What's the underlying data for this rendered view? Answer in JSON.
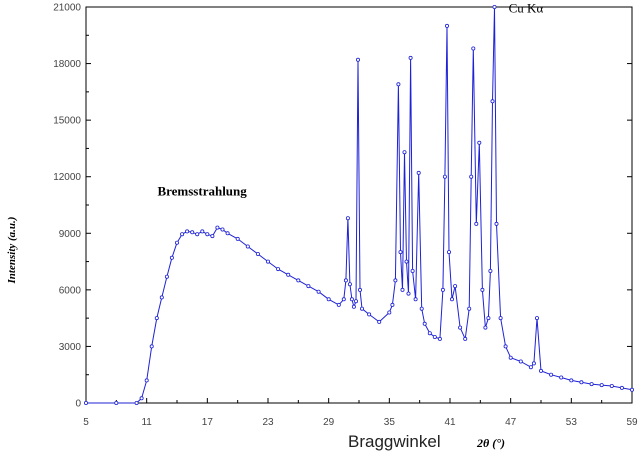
{
  "chart_data": {
    "type": "line",
    "xlabel": "Braggwinkel",
    "xlabel_unit": "2θ (°)",
    "ylabel": "Intensity (a.u.)",
    "xlim": [
      5,
      59
    ],
    "ylim": [
      0,
      21000
    ],
    "grid": false,
    "x_ticks": [
      "5",
      "11",
      "17",
      "23",
      "29",
      "35",
      "41",
      "47",
      "53",
      "59"
    ],
    "y_ticks": [
      "0",
      "3000",
      "6000",
      "9000",
      "12000",
      "15000",
      "18000",
      "21000"
    ],
    "annotations": [
      {
        "text": "Bremsstrahlung",
        "x": 18,
        "y": 11000
      },
      {
        "text": "Cu Kα",
        "x": 46.8,
        "y": 20700
      }
    ],
    "series": [
      {
        "color": "#1e22d6",
        "x": [
          5,
          8,
          10,
          10.5,
          11,
          11.5,
          12,
          12.5,
          13,
          13.5,
          14,
          14.5,
          15,
          15.5,
          16,
          16.5,
          17,
          17.5,
          18,
          18.5,
          19,
          20,
          21,
          22,
          23,
          24,
          25,
          26,
          27,
          28,
          29,
          30,
          30.5,
          30.7,
          30.9,
          31.1,
          31.3,
          31.5,
          31.7,
          31.9,
          32.1,
          32.3,
          33,
          34,
          35,
          35.3,
          35.6,
          35.9,
          36.1,
          36.3,
          36.5,
          36.7,
          36.9,
          37.1,
          37.3,
          37.6,
          37.9,
          38.2,
          38.5,
          39,
          39.5,
          40,
          40.3,
          40.5,
          40.7,
          40.9,
          41.2,
          41.5,
          42,
          42.5,
          42.9,
          43.1,
          43.3,
          43.6,
          43.9,
          44.2,
          44.5,
          44.8,
          45,
          45.2,
          45.4,
          45.6,
          46,
          46.5,
          47,
          48,
          49,
          49.3,
          49.6,
          50,
          51,
          52,
          53,
          54,
          55,
          56,
          57,
          58,
          59
        ],
        "y": [
          0,
          0,
          0,
          250,
          1200,
          3000,
          4500,
          5600,
          6700,
          7700,
          8500,
          8950,
          9100,
          9050,
          8950,
          9100,
          8950,
          8850,
          9300,
          9200,
          9000,
          8700,
          8300,
          7900,
          7500,
          7100,
          6800,
          6500,
          6200,
          5900,
          5500,
          5200,
          5500,
          6500,
          9800,
          6300,
          5500,
          5100,
          5400,
          18200,
          6000,
          5000,
          4700,
          4300,
          4800,
          5200,
          6500,
          16900,
          8000,
          6000,
          13300,
          7500,
          5800,
          18300,
          7000,
          5500,
          12200,
          5000,
          4200,
          3700,
          3500,
          3400,
          6000,
          12000,
          20000,
          8000,
          5500,
          6200,
          4000,
          3400,
          5000,
          12000,
          18800,
          9500,
          13800,
          6000,
          4000,
          4500,
          7000,
          16000,
          21000,
          9500,
          4500,
          3000,
          2400,
          2200,
          1900,
          2100,
          4500,
          1700,
          1500,
          1350,
          1200,
          1100,
          1000,
          950,
          900,
          800,
          700
        ]
      }
    ]
  }
}
